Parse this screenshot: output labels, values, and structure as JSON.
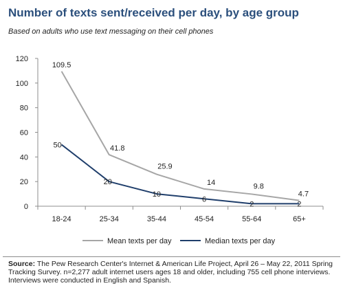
{
  "title": "Number of texts sent/received per day, by age group",
  "subtitle": "Based on adults who use text messaging on their cell phones",
  "chart_data": {
    "type": "line",
    "categories": [
      "18-24",
      "25-34",
      "35-44",
      "45-54",
      "55-64",
      "65+"
    ],
    "ylim": [
      0,
      120
    ],
    "yticks": [
      0,
      20,
      40,
      60,
      80,
      100,
      120
    ],
    "grid": false,
    "legend": "bottom",
    "series": [
      {
        "name": "Mean texts per day",
        "color": "#a6a6a6",
        "values": [
          109.5,
          41.8,
          25.9,
          14,
          9.8,
          4.7
        ],
        "labels": [
          "109.5",
          "41.8",
          "25.9",
          "14",
          "9.8",
          "4.7"
        ]
      },
      {
        "name": "Median texts per day",
        "color": "#1f3e6b",
        "values": [
          50,
          20,
          10,
          6,
          2,
          2
        ],
        "labels": [
          "50",
          "20",
          "10",
          "6",
          "2",
          "2"
        ]
      }
    ]
  },
  "source": {
    "label": "Source:",
    "text": "The Pew Research Center's Internet & American Life Project, April 26 – May 22, 2011 Spring Tracking Survey. n=2,277 adult internet users ages 18 and older, including 755 cell phone interviews. Interviews were conducted in English and Spanish."
  }
}
